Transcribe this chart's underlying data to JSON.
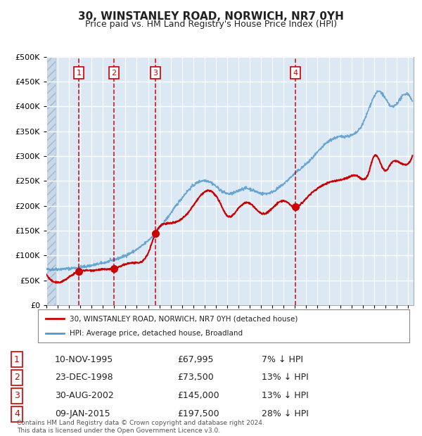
{
  "title": "30, WINSTANLEY ROAD, NORWICH, NR7 0YH",
  "subtitle": "Price paid vs. HM Land Registry's House Price Index (HPI)",
  "ylabel": "",
  "ylim": [
    0,
    500000
  ],
  "yticks": [
    0,
    50000,
    100000,
    150000,
    200000,
    250000,
    300000,
    350000,
    400000,
    450000,
    500000
  ],
  "xlim_start": 1993.0,
  "xlim_end": 2025.5,
  "background_color": "#dce9f5",
  "plot_bg_color": "#dce9f5",
  "hatch_color": "#b0c8e0",
  "grid_color": "#ffffff",
  "red_line_color": "#cc0000",
  "blue_line_color": "#5599cc",
  "sale_marker_color": "#cc0000",
  "vline_color": "#cc0000",
  "transactions": [
    {
      "num": 1,
      "date_x": 1995.86,
      "price": 67995,
      "label": "10-NOV-1995",
      "price_str": "£67,995",
      "hpi_str": "7% ↓ HPI"
    },
    {
      "num": 2,
      "date_x": 1998.98,
      "price": 73500,
      "label": "23-DEC-1998",
      "price_str": "£73,500",
      "hpi_str": "13% ↓ HPI"
    },
    {
      "num": 3,
      "date_x": 2002.66,
      "price": 145000,
      "label": "30-AUG-2002",
      "price_str": "£145,000",
      "hpi_str": "13% ↓ HPI"
    },
    {
      "num": 4,
      "date_x": 2015.03,
      "price": 197500,
      "label": "09-JAN-2015",
      "price_str": "£197,500",
      "hpi_str": "28% ↓ HPI"
    }
  ],
  "legend_red_label": "30, WINSTANLEY ROAD, NORWICH, NR7 0YH (detached house)",
  "legend_blue_label": "HPI: Average price, detached house, Broadland",
  "footer": "Contains HM Land Registry data © Crown copyright and database right 2024.\nThis data is licensed under the Open Government Licence v3.0.",
  "table_rows": [
    [
      "1",
      "10-NOV-1995",
      "£67,995",
      "7% ↓ HPI"
    ],
    [
      "2",
      "23-DEC-1998",
      "£73,500",
      "13% ↓ HPI"
    ],
    [
      "3",
      "30-AUG-2002",
      "£145,000",
      "13% ↓ HPI"
    ],
    [
      "4",
      "09-JAN-2015",
      "£197,500",
      "28% ↓ HPI"
    ]
  ]
}
